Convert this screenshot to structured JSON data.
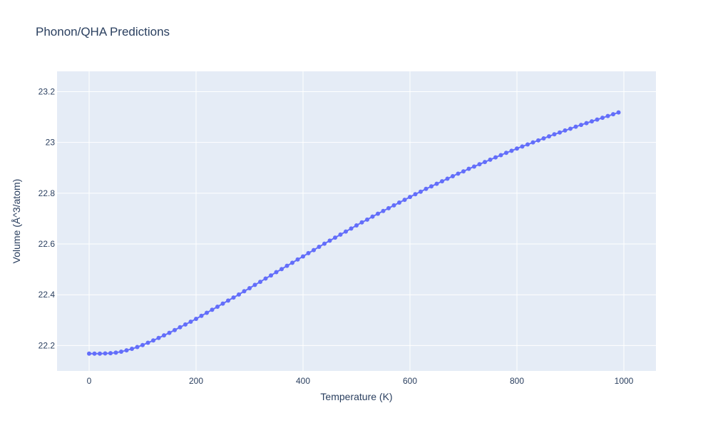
{
  "chart_data": {
    "type": "line",
    "title": "Phonon/QHA Predictions",
    "xlabel": "Temperature (K)",
    "ylabel": "Volume (Å^3/atom)",
    "xlim": [
      -60,
      1060
    ],
    "ylim": [
      22.1,
      23.28
    ],
    "x_ticks": [
      0,
      200,
      400,
      600,
      800,
      1000
    ],
    "x_tick_labels": [
      "0",
      "200",
      "400",
      "600",
      "800",
      "1000"
    ],
    "y_ticks": [
      22.2,
      22.4,
      22.6,
      22.8,
      23.0,
      23.2
    ],
    "y_tick_labels": [
      "22.2",
      "22.4",
      "22.6",
      "22.8",
      "23",
      "23.2"
    ],
    "grid": true,
    "legend": "none",
    "colors": {
      "series": "#636efa",
      "plot_background": "#e5ecf6",
      "grid": "#ffffff",
      "text": "#2a3f5f"
    },
    "mode": "lines+markers",
    "series": [
      {
        "x": [
          0,
          10,
          20,
          30,
          40,
          50,
          60,
          70,
          80,
          90,
          100,
          110,
          120,
          130,
          140,
          150,
          160,
          170,
          180,
          190,
          200,
          210,
          220,
          230,
          240,
          250,
          260,
          270,
          280,
          290,
          300,
          310,
          320,
          330,
          340,
          350,
          360,
          370,
          380,
          390,
          400,
          410,
          420,
          430,
          440,
          450,
          460,
          470,
          480,
          490,
          500,
          510,
          520,
          530,
          540,
          550,
          560,
          570,
          580,
          590,
          600,
          610,
          620,
          630,
          640,
          650,
          660,
          670,
          680,
          690,
          700,
          710,
          720,
          730,
          740,
          750,
          760,
          770,
          780,
          790,
          800,
          810,
          820,
          830,
          840,
          850,
          860,
          870,
          880,
          890,
          900,
          910,
          920,
          930,
          940,
          950,
          960,
          970,
          980,
          990
        ],
        "y": [
          22.168,
          22.168,
          22.168,
          22.169,
          22.17,
          22.172,
          22.176,
          22.181,
          22.187,
          22.194,
          22.202,
          22.211,
          22.22,
          22.23,
          22.24,
          22.25,
          22.261,
          22.272,
          22.283,
          22.294,
          22.305,
          22.317,
          22.329,
          22.341,
          22.353,
          22.365,
          22.377,
          22.389,
          22.401,
          22.414,
          22.426,
          22.439,
          22.451,
          22.464,
          22.476,
          22.489,
          22.501,
          22.514,
          22.526,
          22.539,
          22.551,
          22.564,
          22.576,
          22.589,
          22.601,
          22.613,
          22.625,
          22.637,
          22.649,
          22.661,
          22.673,
          22.685,
          22.696,
          22.708,
          22.719,
          22.73,
          22.741,
          22.752,
          22.763,
          22.774,
          22.785,
          22.796,
          22.806,
          22.817,
          22.827,
          22.837,
          22.847,
          22.857,
          22.867,
          22.877,
          22.886,
          22.896,
          22.905,
          22.914,
          22.923,
          22.932,
          22.941,
          22.95,
          22.959,
          22.967,
          22.976,
          22.984,
          22.992,
          23.0,
          23.008,
          23.016,
          23.024,
          23.032,
          23.039,
          23.047,
          23.054,
          23.062,
          23.069,
          23.076,
          23.083,
          23.09,
          23.097,
          23.104,
          23.111,
          23.118
        ]
      }
    ]
  }
}
